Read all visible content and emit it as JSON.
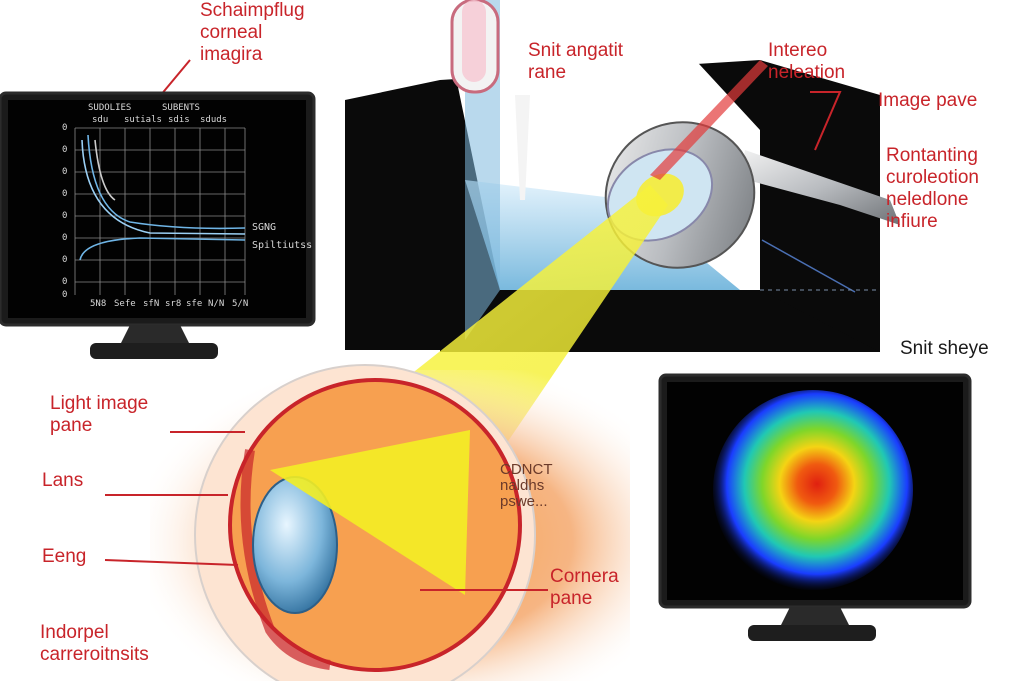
{
  "labels": {
    "scheimpflug": "Schaimpflug\ncorneal\nimagira",
    "slit_angle": "Snit angatit\nrane",
    "interest": "Intereo\nneleation",
    "image_plane": "Image pave",
    "rotating": "Rontanting\ncuroleotion\nneledlone\ninfiure",
    "slit_eye": "Snit sheye",
    "light_image": "Light image\npane",
    "lens": "Lans",
    "eeng": "Eeng",
    "indorpel": "Indorpel\ncarreroitnsits",
    "cornea": "Cornera\npane",
    "contact": "CDNCT\nnaldhs\npswe..."
  },
  "graph_monitor": {
    "header_left": "SUDOLIES",
    "header_right": "SUBENTS",
    "subheader": [
      "sdu",
      "sutials",
      "sdis",
      "sduds"
    ],
    "y_ticks": [
      "0",
      "0",
      "0",
      "0",
      "0",
      "0",
      "0",
      "0",
      "0"
    ],
    "x_ticks": [
      "5N8",
      "Sefe",
      "sfN",
      "sr8",
      "sfe",
      "N/N",
      "5/N"
    ],
    "legend": [
      "SGNG",
      "Spiltiutss"
    ]
  },
  "colors": {
    "label_red": "#c8242a",
    "beam_yellow": "#f2ee2a",
    "heatmap_center": "#e02010",
    "heatmap_edge": "#1a3cff"
  }
}
